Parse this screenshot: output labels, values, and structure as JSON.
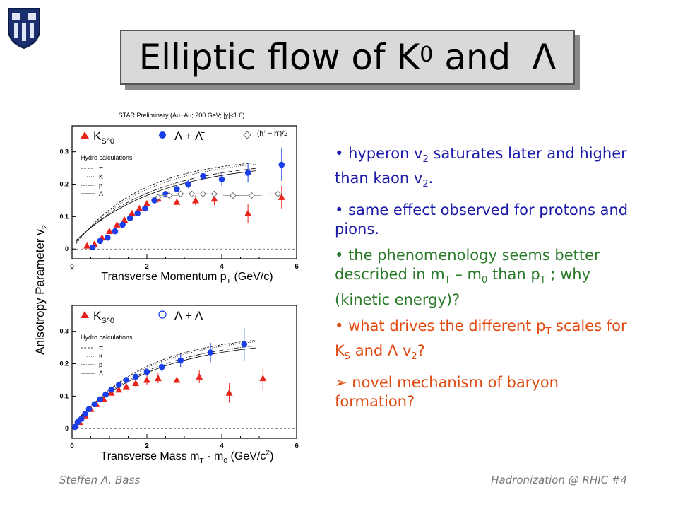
{
  "title": {
    "main": "Elliptic flow of K",
    "sup": "0",
    "rest": " and ",
    "symbol": "Λ"
  },
  "bullets": [
    {
      "parts": [
        {
          "t": "hyperon v"
        },
        {
          "s": "2"
        },
        {
          "t": " saturates later and higher than kaon v"
        },
        {
          "s": "2"
        },
        {
          "t": "."
        }
      ]
    },
    {
      "parts": [
        {
          "t": "same effect observed for protons and pions."
        }
      ]
    },
    {
      "parts": [
        {
          "t": "the phenomenology seems better described in m"
        },
        {
          "s": "T"
        },
        {
          "t": " – m"
        },
        {
          "s": "0"
        },
        {
          "t": " than p"
        },
        {
          "s": "T"
        },
        {
          "t": " ;  why (kinetic energy)?"
        }
      ]
    },
    {
      "parts": [
        {
          "t": "what drives the different p"
        },
        {
          "s": "T"
        },
        {
          "t": " scales for K"
        },
        {
          "s": "S"
        },
        {
          "t": " and Λ v"
        },
        {
          "s": "2"
        },
        {
          "t": "?"
        }
      ]
    },
    {
      "parts": [
        {
          "t": "novel mechanism of baryon formation?"
        }
      ]
    }
  ],
  "bullet_markers": [
    "•",
    "•",
    "•",
    "•",
    "➢"
  ],
  "footer": {
    "left": "Steffen A. Bass",
    "right": "Hadronization @ RHIC  #4"
  },
  "colors": {
    "kaon": "#e8241a",
    "lambda": "#1a3ee8",
    "hadron": "#888888",
    "bullet1": "#1a1aa6",
    "bullet2": "#2a7a2a",
    "bullet3": "#e04a10"
  },
  "chart_data": [
    {
      "type": "scatter",
      "title": "STAR Preliminary (Au+Au; 200 GeV; |y|<1.0)",
      "xlabel": "Transverse Momentum p_T (GeV/c)",
      "ylabel": "Anisotropy Parameter v_2",
      "xlim": [
        0,
        6
      ],
      "ylim": [
        -0.03,
        0.38
      ],
      "xticks": [
        "0",
        "2",
        "4",
        "6"
      ],
      "yticks": [
        "0",
        "0.1",
        "0.2",
        "0.3"
      ],
      "legend": [
        "K_S^0",
        "Λ + Λ̄",
        "(h^+ + h^-)/2"
      ],
      "hydro_label": "Hydro calculations",
      "hydro_legend": [
        "π",
        "K",
        "p",
        "Λ"
      ],
      "series": [
        {
          "name": "K_S^0",
          "marker": "triangle",
          "x": [
            0.4,
            0.6,
            0.8,
            1.0,
            1.2,
            1.4,
            1.6,
            1.8,
            2.0,
            2.3,
            2.8,
            3.3,
            3.8,
            4.7,
            5.6
          ],
          "y": [
            0.01,
            0.015,
            0.035,
            0.055,
            0.075,
            0.09,
            0.11,
            0.125,
            0.14,
            0.155,
            0.145,
            0.15,
            0.155,
            0.11,
            0.16
          ],
          "err": [
            0.005,
            0.005,
            0.005,
            0.005,
            0.006,
            0.007,
            0.008,
            0.009,
            0.01,
            0.012,
            0.015,
            0.015,
            0.02,
            0.03,
            0.035
          ]
        },
        {
          "name": "Λ + Λ̄",
          "marker": "circle",
          "x": [
            0.55,
            0.75,
            0.95,
            1.15,
            1.35,
            1.55,
            1.75,
            1.95,
            2.2,
            2.5,
            2.8,
            3.1,
            3.5,
            4.0,
            4.7,
            5.6
          ],
          "y": [
            0.005,
            0.025,
            0.035,
            0.055,
            0.075,
            0.095,
            0.11,
            0.125,
            0.15,
            0.17,
            0.185,
            0.2,
            0.225,
            0.215,
            0.235,
            0.26
          ],
          "err": [
            0.005,
            0.005,
            0.005,
            0.005,
            0.005,
            0.006,
            0.006,
            0.007,
            0.008,
            0.009,
            0.01,
            0.012,
            0.015,
            0.02,
            0.03,
            0.05
          ]
        },
        {
          "name": "(h^+ + h^-)/2",
          "marker": "diamond",
          "x": [
            2.3,
            2.6,
            2.9,
            3.2,
            3.5,
            3.8,
            4.3,
            4.8,
            5.5
          ],
          "y": [
            0.16,
            0.165,
            0.17,
            0.17,
            0.17,
            0.17,
            0.165,
            0.165,
            0.17
          ],
          "err": [
            0.003,
            0.003,
            0.003,
            0.004,
            0.004,
            0.005,
            0.006,
            0.008,
            0.01
          ]
        }
      ]
    },
    {
      "type": "scatter",
      "xlabel": "Transverse Mass m_T - m_0 (GeV/c^2)",
      "ylabel": "Anisotropy Parameter v_2",
      "xlim": [
        0,
        6
      ],
      "ylim": [
        -0.03,
        0.38
      ],
      "xticks": [
        "0",
        "2",
        "4",
        "6"
      ],
      "yticks": [
        "0",
        "0.1",
        "0.2",
        "0.3"
      ],
      "legend": [
        "K_S^0",
        "Λ + Λ̄"
      ],
      "hydro_label": "Hydro calculations",
      "hydro_legend": [
        "π",
        "K",
        "p",
        "Λ"
      ],
      "series": [
        {
          "name": "K_S^0",
          "marker": "triangle",
          "x": [
            0.1,
            0.2,
            0.35,
            0.5,
            0.65,
            0.85,
            1.05,
            1.25,
            1.45,
            1.7,
            2.0,
            2.3,
            2.8,
            3.4,
            4.2,
            5.1
          ],
          "y": [
            0.01,
            0.02,
            0.04,
            0.06,
            0.075,
            0.09,
            0.11,
            0.12,
            0.13,
            0.14,
            0.15,
            0.155,
            0.15,
            0.16,
            0.11,
            0.155
          ],
          "err": [
            0.005,
            0.005,
            0.005,
            0.005,
            0.006,
            0.007,
            0.008,
            0.009,
            0.01,
            0.012,
            0.015,
            0.015,
            0.015,
            0.02,
            0.03,
            0.035
          ]
        },
        {
          "name": "Λ + Λ̄",
          "marker": "circle",
          "x": [
            0.08,
            0.15,
            0.25,
            0.35,
            0.45,
            0.6,
            0.75,
            0.9,
            1.05,
            1.25,
            1.45,
            1.7,
            2.0,
            2.4,
            2.9,
            3.7,
            4.6
          ],
          "y": [
            0.005,
            0.02,
            0.03,
            0.045,
            0.06,
            0.075,
            0.09,
            0.105,
            0.12,
            0.135,
            0.15,
            0.16,
            0.175,
            0.19,
            0.21,
            0.235,
            0.26
          ],
          "err": [
            0.005,
            0.005,
            0.005,
            0.005,
            0.005,
            0.005,
            0.006,
            0.006,
            0.007,
            0.008,
            0.009,
            0.01,
            0.012,
            0.015,
            0.02,
            0.03,
            0.05
          ]
        }
      ]
    }
  ]
}
